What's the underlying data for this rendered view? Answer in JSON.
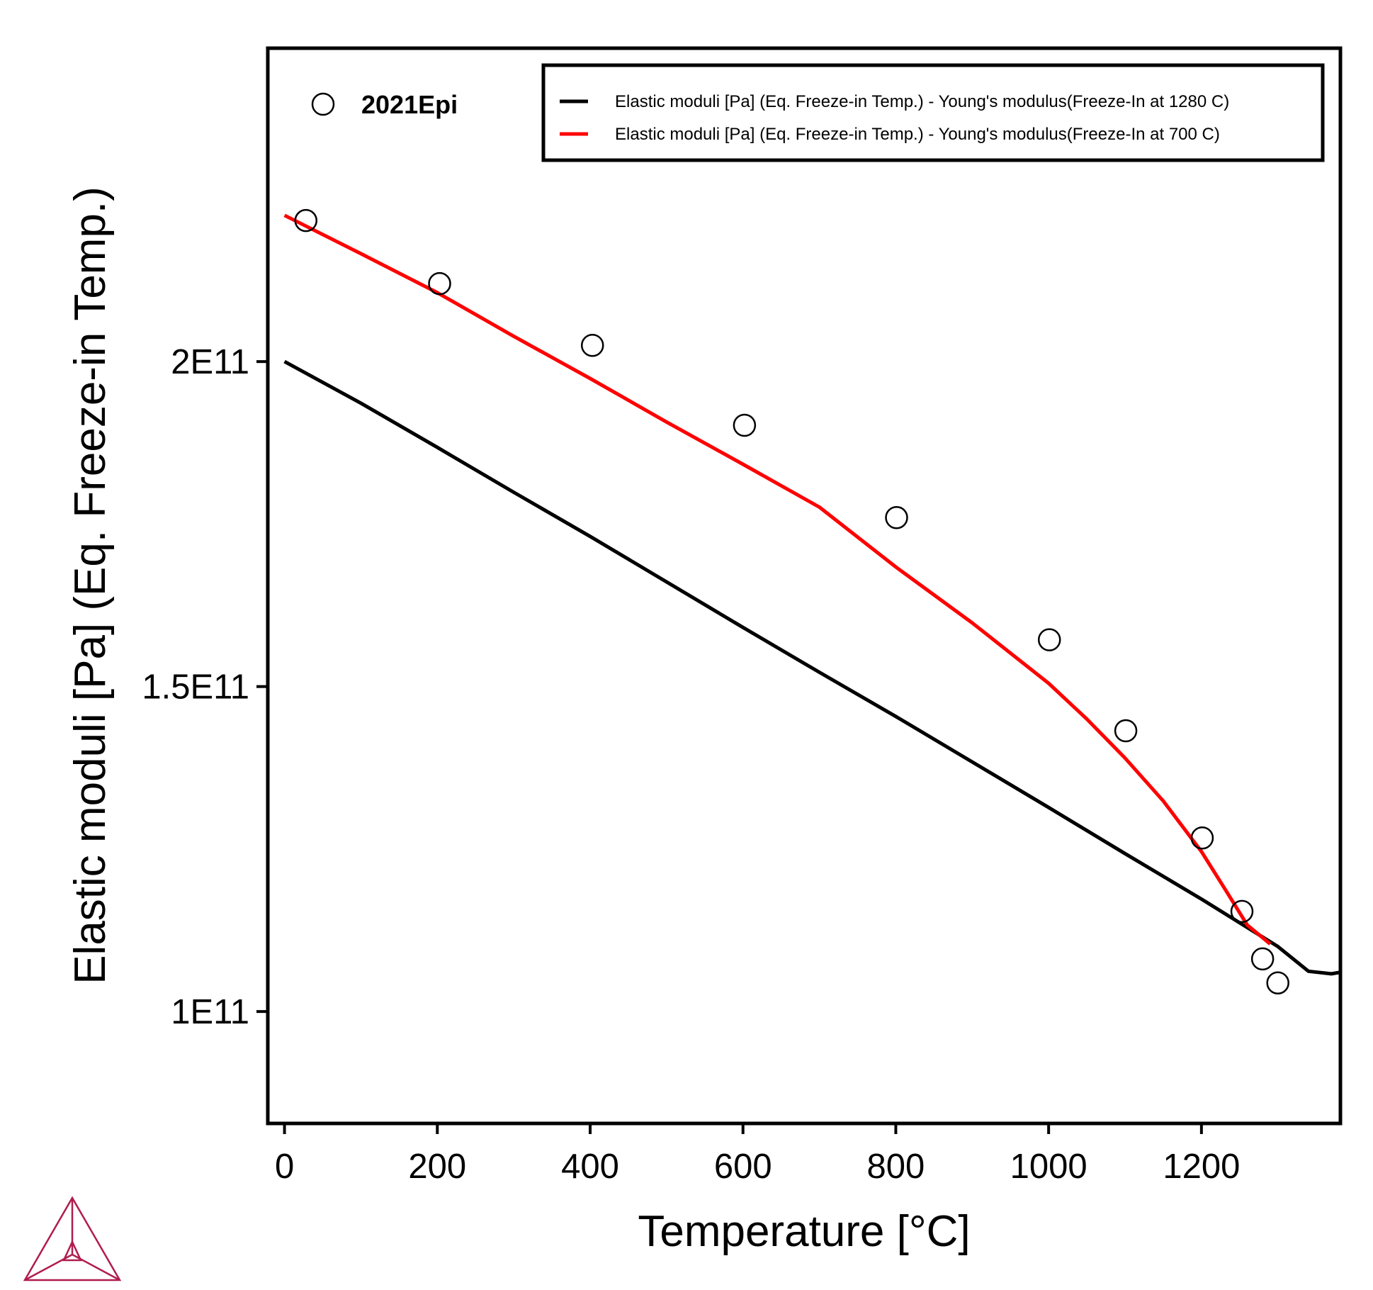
{
  "chart_data": {
    "type": "line",
    "title": "",
    "xlabel": "Temperature [°C]",
    "ylabel": "Elastic moduli [Pa] (Eq. Freeze-in Temp.)",
    "xlim": [
      -20,
      1380
    ],
    "ylim": [
      83000000000,
      248000000000
    ],
    "xticks": [
      0,
      200,
      400,
      600,
      800,
      1000,
      1200
    ],
    "xtick_labels": [
      "0",
      "200",
      "400",
      "600",
      "800",
      "1000",
      "1200"
    ],
    "yticks": [
      100000000000,
      150000000000,
      200000000000
    ],
    "ytick_labels": [
      "1E11",
      "1.5E11",
      "2E11"
    ],
    "grid": false,
    "legend_position": "top-right",
    "series": [
      {
        "name": "Elastic moduli [Pa] (Eq. Freeze-in Temp.) - Young's modulus(Freeze-In at 1280 C)",
        "color": "#000000",
        "x": [
          0,
          100,
          200,
          300,
          400,
          500,
          600,
          700,
          800,
          900,
          1000,
          1100,
          1200,
          1300,
          1340,
          1370,
          1380
        ],
        "y": [
          200000000000,
          193600000000,
          186800000000,
          179900000000,
          173100000000,
          166100000000,
          159100000000,
          152200000000,
          145400000000,
          138400000000,
          131400000000,
          124300000000,
          117300000000,
          110000000000,
          106200000000,
          105800000000,
          106000000000
        ]
      },
      {
        "name": "Elastic moduli [Pa] (Eq. Freeze-in Temp.) - Young's modulus(Freeze-In at 700 C)",
        "color": "#ff0000",
        "x": [
          0,
          100,
          200,
          300,
          400,
          500,
          600,
          700,
          800,
          900,
          1000,
          1050,
          1100,
          1150,
          1200,
          1230,
          1260,
          1290
        ],
        "y": [
          222500000000,
          216600000000,
          210600000000,
          203900000000,
          197400000000,
          190700000000,
          184200000000,
          177600000000,
          168400000000,
          159800000000,
          150500000000,
          145000000000,
          139000000000,
          132400000000,
          124600000000,
          119000000000,
          113300000000,
          110400000000
        ]
      }
    ],
    "scatter": {
      "name": "2021Epi",
      "x": [
        28,
        203,
        403,
        602,
        801,
        1001,
        1101,
        1201,
        1253,
        1280,
        1300
      ],
      "y": [
        221700000000,
        212000000000,
        202500000000,
        190200000000,
        176000000000,
        157200000000,
        143200000000,
        126700000000,
        115400000000,
        108100000000,
        104400000000
      ]
    }
  }
}
